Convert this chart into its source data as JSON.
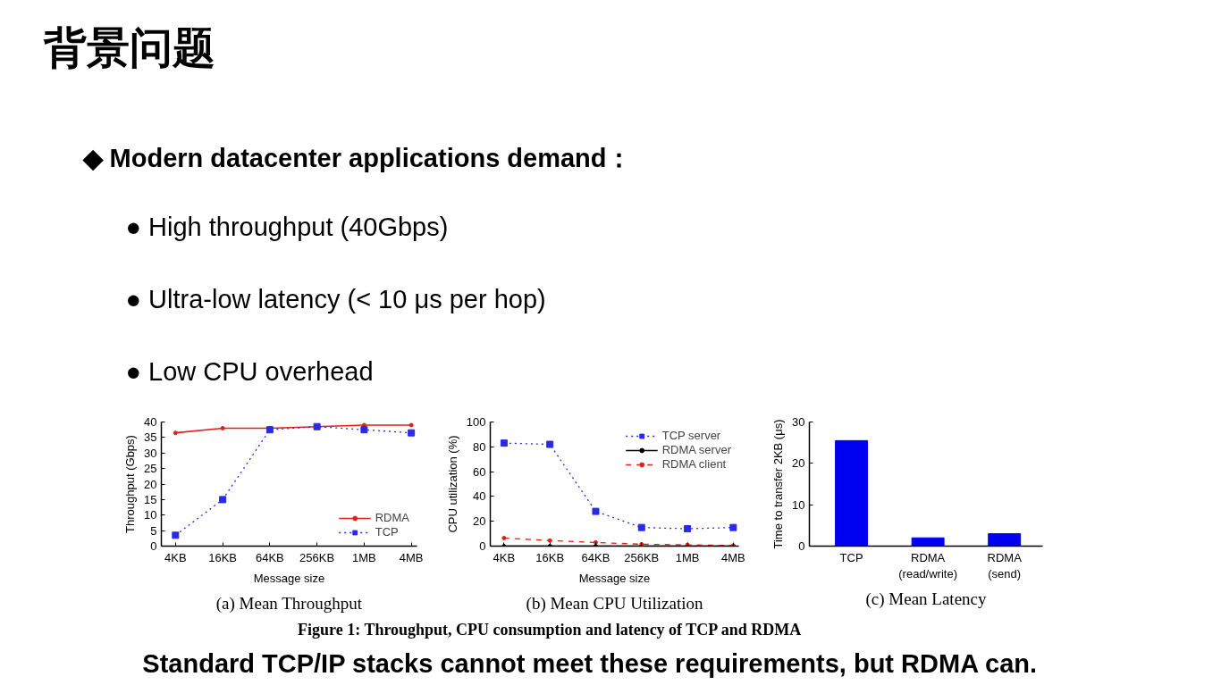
{
  "chart_data": [
    {
      "type": "other",
      "title": "背景问题",
      "annotations": [
        "◆ Modern datacenter applications demand：",
        "● High throughput (40Gbps)",
        "● Ultra-low latency (< 10 μs per hop)",
        "● Low CPU overhead"
      ]
    },
    {
      "type": "line",
      "title": "(a) Mean Throughput",
      "xlabel": "Message size",
      "ylabel": "Throughput (Gbps)",
      "categories": [
        "4KB",
        "16KB",
        "64KB",
        "256KB",
        "1MB",
        "4MB"
      ],
      "ylim": [
        0,
        40
      ],
      "yticks": [
        0,
        5,
        10,
        15,
        20,
        25,
        30,
        35,
        40
      ],
      "legend": "bottom right",
      "series": [
        {
          "name": "RDMA",
          "color": "#e0201a",
          "marker": "circle",
          "line_style": "solid",
          "values": [
            36.5,
            38,
            38,
            38.5,
            39,
            39
          ]
        },
        {
          "name": "TCP",
          "color": "#2a2ae6",
          "marker": "square",
          "line_style": "dotted",
          "values": [
            3.5,
            15,
            37.5,
            38.5,
            37.5,
            36.5
          ]
        }
      ]
    },
    {
      "type": "line",
      "title": "(b) Mean CPU Utilization",
      "xlabel": "Message size",
      "ylabel": "CPU utilization (%)",
      "categories": [
        "4KB",
        "16KB",
        "64KB",
        "256KB",
        "1MB",
        "4MB"
      ],
      "ylim": [
        0,
        100
      ],
      "yticks": [
        0,
        20,
        40,
        60,
        80,
        100
      ],
      "legend": "top right",
      "series": [
        {
          "name": "TCP server",
          "color": "#2a2ae6",
          "marker": "square",
          "line_style": "dotted",
          "values": [
            83,
            82,
            28,
            15,
            14,
            15
          ]
        },
        {
          "name": "RDMA server",
          "color": "#000000",
          "marker": "circle",
          "line_style": "solid",
          "values": [
            0,
            0,
            0,
            0,
            0,
            0
          ]
        },
        {
          "name": "RDMA client",
          "color": "#e0201a",
          "marker": "circle",
          "line_style": "dashed",
          "values": [
            6.5,
            4.5,
            3,
            1.5,
            1,
            0.5
          ]
        }
      ]
    },
    {
      "type": "bar",
      "title": "(c) Mean Latency",
      "ylabel": "Time to transfer 2KB (μs)",
      "categories": [
        "TCP",
        "RDMA\n(read/write)",
        "RDMA\n(send)"
      ],
      "values": [
        25.5,
        2,
        3
      ],
      "color": "#0000f0",
      "ylim": [
        0,
        30
      ],
      "yticks": [
        0,
        10,
        20,
        30
      ]
    },
    {
      "type": "other",
      "annotations": [
        "Figure 1: Throughput, CPU consumption and latency of TCP and RDMA",
        "Standard TCP/IP stacks cannot meet these requirements, but RDMA can."
      ]
    }
  ]
}
